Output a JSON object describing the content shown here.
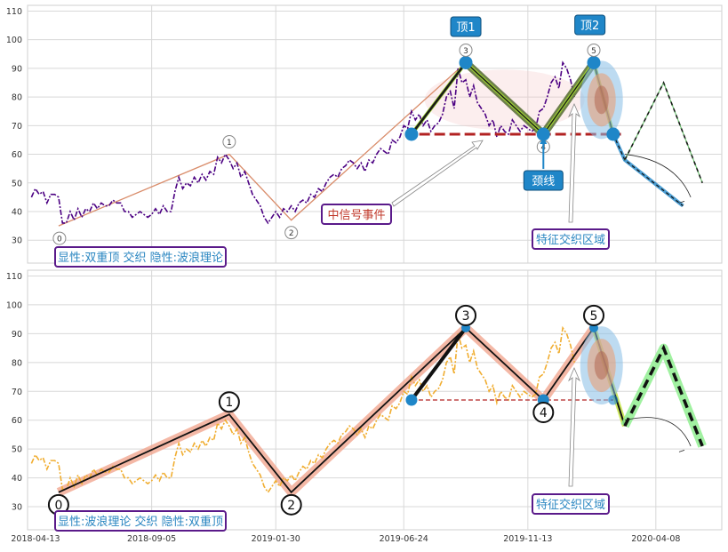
{
  "chart_data": [
    {
      "type": "line",
      "panel": "top",
      "ylim": [
        22,
        112
      ],
      "yticks": [
        30,
        40,
        50,
        60,
        70,
        80,
        90,
        100,
        110
      ],
      "grid": true,
      "price_series": [
        [
          0,
          45
        ],
        [
          1,
          48
        ],
        [
          2,
          46
        ],
        [
          3,
          47
        ],
        [
          4,
          43
        ],
        [
          5,
          46
        ],
        [
          6,
          46
        ],
        [
          7,
          45
        ],
        [
          8,
          36
        ],
        [
          9,
          36
        ],
        [
          10,
          40
        ],
        [
          11,
          37
        ],
        [
          12,
          41
        ],
        [
          13,
          38
        ],
        [
          14,
          41
        ],
        [
          15,
          40
        ],
        [
          16,
          43
        ],
        [
          17,
          41
        ],
        [
          18,
          43
        ],
        [
          19,
          42
        ],
        [
          20,
          42
        ],
        [
          21,
          44
        ],
        [
          22,
          43
        ],
        [
          23,
          43
        ],
        [
          24,
          40
        ],
        [
          25,
          40
        ],
        [
          26,
          38
        ],
        [
          27,
          39
        ],
        [
          28,
          40
        ],
        [
          29,
          39
        ],
        [
          30,
          38
        ],
        [
          31,
          39
        ],
        [
          32,
          41
        ],
        [
          33,
          39
        ],
        [
          34,
          42
        ],
        [
          35,
          40
        ],
        [
          36,
          40
        ],
        [
          37,
          47
        ],
        [
          38,
          52
        ],
        [
          39,
          48
        ],
        [
          40,
          50
        ],
        [
          41,
          49
        ],
        [
          42,
          52
        ],
        [
          43,
          50
        ],
        [
          44,
          53
        ],
        [
          45,
          51
        ],
        [
          46,
          54
        ],
        [
          47,
          53
        ],
        [
          48,
          59
        ],
        [
          49,
          57
        ],
        [
          50,
          60
        ],
        [
          51,
          58
        ],
        [
          52,
          55
        ],
        [
          53,
          57
        ],
        [
          54,
          52
        ],
        [
          55,
          54
        ],
        [
          56,
          50
        ],
        [
          57,
          46
        ],
        [
          58,
          44
        ],
        [
          59,
          42
        ],
        [
          60,
          38
        ],
        [
          61,
          36
        ],
        [
          62,
          38
        ],
        [
          63,
          40
        ],
        [
          64,
          38
        ],
        [
          65,
          41
        ],
        [
          66,
          40
        ],
        [
          67,
          42
        ],
        [
          68,
          40
        ],
        [
          69,
          43
        ],
        [
          70,
          44
        ],
        [
          71,
          43
        ],
        [
          72,
          46
        ],
        [
          73,
          45
        ],
        [
          74,
          48
        ],
        [
          75,
          47
        ],
        [
          76,
          50
        ],
        [
          77,
          52
        ],
        [
          78,
          53
        ],
        [
          79,
          52
        ],
        [
          80,
          55
        ],
        [
          81,
          56
        ],
        [
          82,
          58
        ],
        [
          83,
          57
        ],
        [
          84,
          55
        ],
        [
          85,
          57
        ],
        [
          86,
          54
        ],
        [
          87,
          58
        ],
        [
          88,
          57
        ],
        [
          89,
          60
        ],
        [
          90,
          62
        ],
        [
          91,
          61
        ],
        [
          92,
          60
        ],
        [
          93,
          65
        ],
        [
          94,
          64
        ],
        [
          95,
          66
        ],
        [
          96,
          70
        ],
        [
          97,
          69
        ],
        [
          98,
          75
        ],
        [
          99,
          72
        ],
        [
          100,
          74
        ],
        [
          101,
          70
        ],
        [
          102,
          72
        ],
        [
          103,
          68
        ],
        [
          104,
          70
        ],
        [
          105,
          71
        ],
        [
          106,
          74
        ],
        [
          107,
          80
        ],
        [
          108,
          82
        ],
        [
          109,
          76
        ],
        [
          110,
          90
        ],
        [
          111,
          85
        ],
        [
          112,
          86
        ],
        [
          113,
          80
        ],
        [
          114,
          84
        ],
        [
          115,
          78
        ],
        [
          116,
          76
        ],
        [
          117,
          74
        ],
        [
          118,
          70
        ],
        [
          119,
          72
        ],
        [
          120,
          66
        ],
        [
          121,
          70
        ],
        [
          122,
          68
        ],
        [
          123,
          67
        ],
        [
          124,
          72
        ],
        [
          125,
          70
        ],
        [
          126,
          68
        ],
        [
          127,
          70
        ],
        [
          128,
          69
        ],
        [
          129,
          68
        ],
        [
          130,
          69
        ],
        [
          131,
          75
        ],
        [
          132,
          76
        ],
        [
          133,
          80
        ],
        [
          134,
          85
        ],
        [
          135,
          87
        ],
        [
          136,
          83
        ],
        [
          137,
          92
        ],
        [
          138,
          90
        ],
        [
          139,
          86
        ],
        [
          140,
          80
        ]
      ],
      "price_color": "#4b0082",
      "wave_points": {
        "x": [
          7,
          51,
          67,
          112,
          132,
          145
        ],
        "y": [
          35,
          60,
          37,
          92,
          67,
          92
        ]
      },
      "wave_labels": [
        "0",
        "1",
        "2",
        "3",
        "4",
        "5"
      ],
      "double_top": {
        "x": [
          98,
          112,
          132,
          145,
          150
        ],
        "y": [
          67,
          92,
          67,
          92,
          67
        ]
      },
      "neckline_y": 67,
      "projection_down": {
        "x": [
          150,
          153,
          168
        ],
        "y": [
          67,
          58,
          42
        ]
      },
      "projection_up": {
        "x": [
          153,
          163,
          173
        ],
        "y": [
          58,
          85,
          50
        ]
      },
      "annotations": {
        "top1": "顶1",
        "top2": "顶2",
        "neckline": "颈线",
        "signal": "中信号事件",
        "region": "特征交织区域",
        "legend": "显性:双重顶 交织 隐性:波浪理论"
      }
    },
    {
      "type": "line",
      "panel": "bottom",
      "ylim": [
        22,
        112
      ],
      "yticks": [
        30,
        40,
        50,
        60,
        70,
        80,
        90,
        100,
        110
      ],
      "grid": true,
      "price_color": "#f0ad30",
      "wave_points": {
        "x": [
          7,
          51,
          67,
          112,
          132,
          145
        ],
        "y": [
          35,
          62,
          35,
          92,
          67,
          92
        ]
      },
      "wave_labels": [
        "0",
        "1",
        "2",
        "3",
        "4",
        "5"
      ],
      "double_top": {
        "x": [
          98,
          112,
          132,
          145,
          150
        ],
        "y": [
          67,
          92,
          67,
          92,
          67
        ]
      },
      "neckline_y": 67,
      "projection_up": {
        "x": [
          153,
          163,
          173
        ],
        "y": [
          58,
          85,
          51
        ]
      },
      "annotations": {
        "region": "特征交织区域",
        "legend": "显性:波浪理论 交织 隐性:双重顶"
      }
    }
  ],
  "x_axis": {
    "xlim": [
      -1,
      178
    ],
    "ticks": [
      [
        -2,
        "2018-04-13"
      ],
      [
        31,
        "2018-09-05"
      ],
      [
        63,
        "2019-01-30"
      ],
      [
        96,
        "2019-06-24"
      ],
      [
        128,
        "2019-11-13"
      ],
      [
        161,
        "2020-04-08"
      ]
    ]
  },
  "colors": {
    "primary": "#1f86c8",
    "olive": "#556b2f",
    "neckline_red": "#b22222",
    "label_purple": "#5a1a8a",
    "label_red": "#c0392b",
    "label_blue": "#2a86c1",
    "salmon": "#f0a088",
    "light_green": "#90ee90"
  }
}
